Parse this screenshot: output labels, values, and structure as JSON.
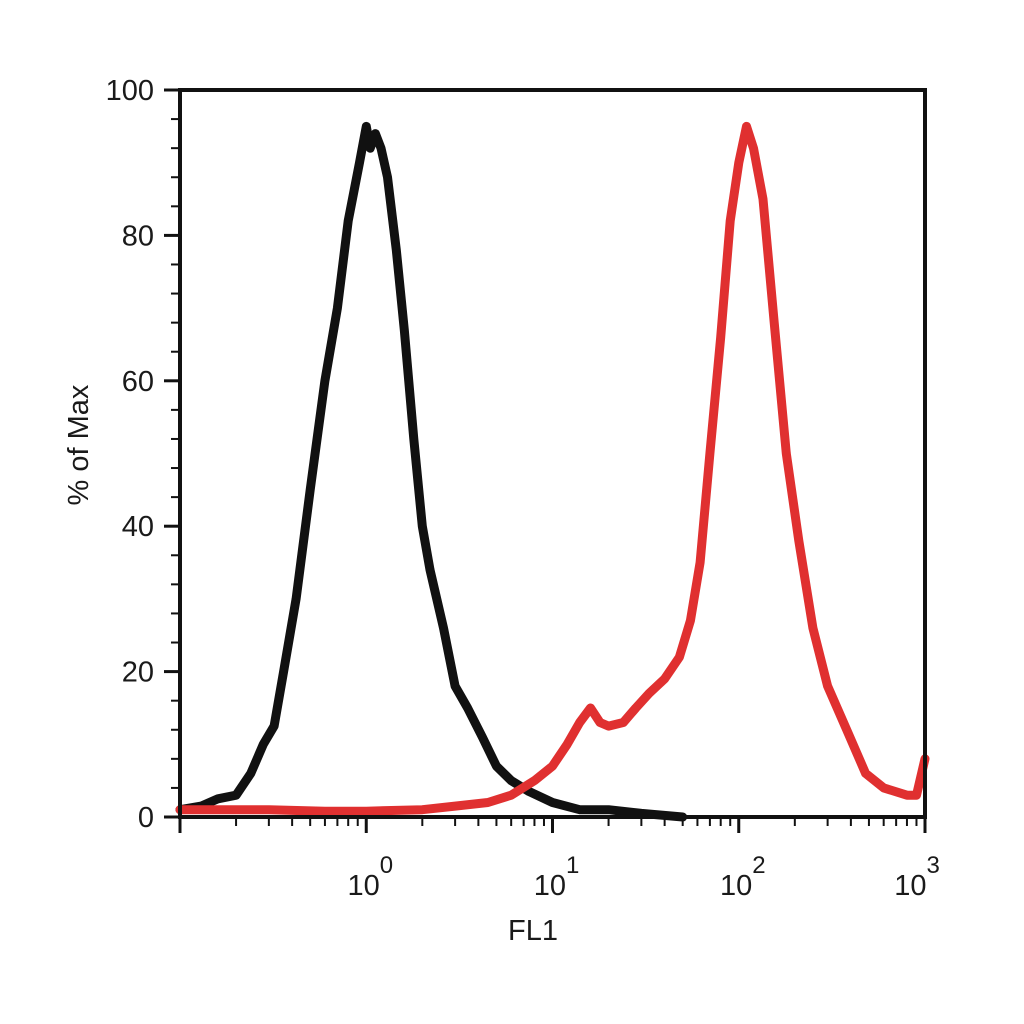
{
  "chart_data": {
    "type": "line",
    "title": "",
    "xlabel": "FL1",
    "ylabel": "% of Max",
    "xscale": "log",
    "xlim": [
      0.1,
      1000
    ],
    "ylim": [
      0,
      100
    ],
    "yticks": [
      0,
      20,
      40,
      60,
      80,
      100
    ],
    "xtick_labels": [
      {
        "value": 1,
        "base": "10",
        "exp": "0"
      },
      {
        "value": 10,
        "base": "10",
        "exp": "1"
      },
      {
        "value": 100,
        "base": "10",
        "exp": "2"
      },
      {
        "value": 1000,
        "base": "10",
        "exp": "3"
      }
    ],
    "grid": false,
    "legend": "none",
    "series": [
      {
        "color": "#111111",
        "points": [
          [
            0.1,
            1
          ],
          [
            0.13,
            1.5
          ],
          [
            0.16,
            2.5
          ],
          [
            0.2,
            3
          ],
          [
            0.24,
            6
          ],
          [
            0.28,
            10
          ],
          [
            0.32,
            12.5
          ],
          [
            0.36,
            20
          ],
          [
            0.42,
            30
          ],
          [
            0.5,
            45
          ],
          [
            0.6,
            60
          ],
          [
            0.7,
            70
          ],
          [
            0.8,
            82
          ],
          [
            0.92,
            90
          ],
          [
            1.0,
            95
          ],
          [
            1.05,
            92
          ],
          [
            1.12,
            94
          ],
          [
            1.2,
            92
          ],
          [
            1.3,
            88
          ],
          [
            1.45,
            78
          ],
          [
            1.6,
            67
          ],
          [
            1.8,
            52
          ],
          [
            2.0,
            40
          ],
          [
            2.2,
            34
          ],
          [
            2.6,
            26
          ],
          [
            3.0,
            18
          ],
          [
            3.5,
            15
          ],
          [
            4.2,
            11
          ],
          [
            5.0,
            7
          ],
          [
            6.0,
            5
          ],
          [
            7.5,
            3.5
          ],
          [
            10.0,
            2
          ],
          [
            14.0,
            1
          ],
          [
            20.0,
            1
          ],
          [
            30.0,
            0.5
          ],
          [
            50.0,
            0
          ]
        ]
      },
      {
        "color": "#e03030",
        "points": [
          [
            0.1,
            1
          ],
          [
            0.3,
            1
          ],
          [
            0.6,
            0.8
          ],
          [
            1.0,
            0.8
          ],
          [
            2.0,
            1
          ],
          [
            3.0,
            1.5
          ],
          [
            4.5,
            2
          ],
          [
            6.0,
            3
          ],
          [
            8.0,
            5
          ],
          [
            10.0,
            7
          ],
          [
            12.0,
            10
          ],
          [
            14.0,
            13
          ],
          [
            16.0,
            15
          ],
          [
            18.0,
            13
          ],
          [
            20.0,
            12.5
          ],
          [
            24.0,
            13
          ],
          [
            28.0,
            15
          ],
          [
            33.0,
            17
          ],
          [
            40.0,
            19
          ],
          [
            48.0,
            22
          ],
          [
            55.0,
            27
          ],
          [
            62.0,
            35
          ],
          [
            70.0,
            50
          ],
          [
            80.0,
            66
          ],
          [
            90.0,
            82
          ],
          [
            100.0,
            90
          ],
          [
            110.0,
            95
          ],
          [
            120.0,
            92
          ],
          [
            135.0,
            85
          ],
          [
            155.0,
            68
          ],
          [
            180.0,
            50
          ],
          [
            210.0,
            38
          ],
          [
            250.0,
            26
          ],
          [
            300.0,
            18
          ],
          [
            380.0,
            12
          ],
          [
            480.0,
            6
          ],
          [
            600.0,
            4
          ],
          [
            800.0,
            3
          ],
          [
            900.0,
            3
          ],
          [
            1000.0,
            8
          ]
        ]
      }
    ]
  }
}
